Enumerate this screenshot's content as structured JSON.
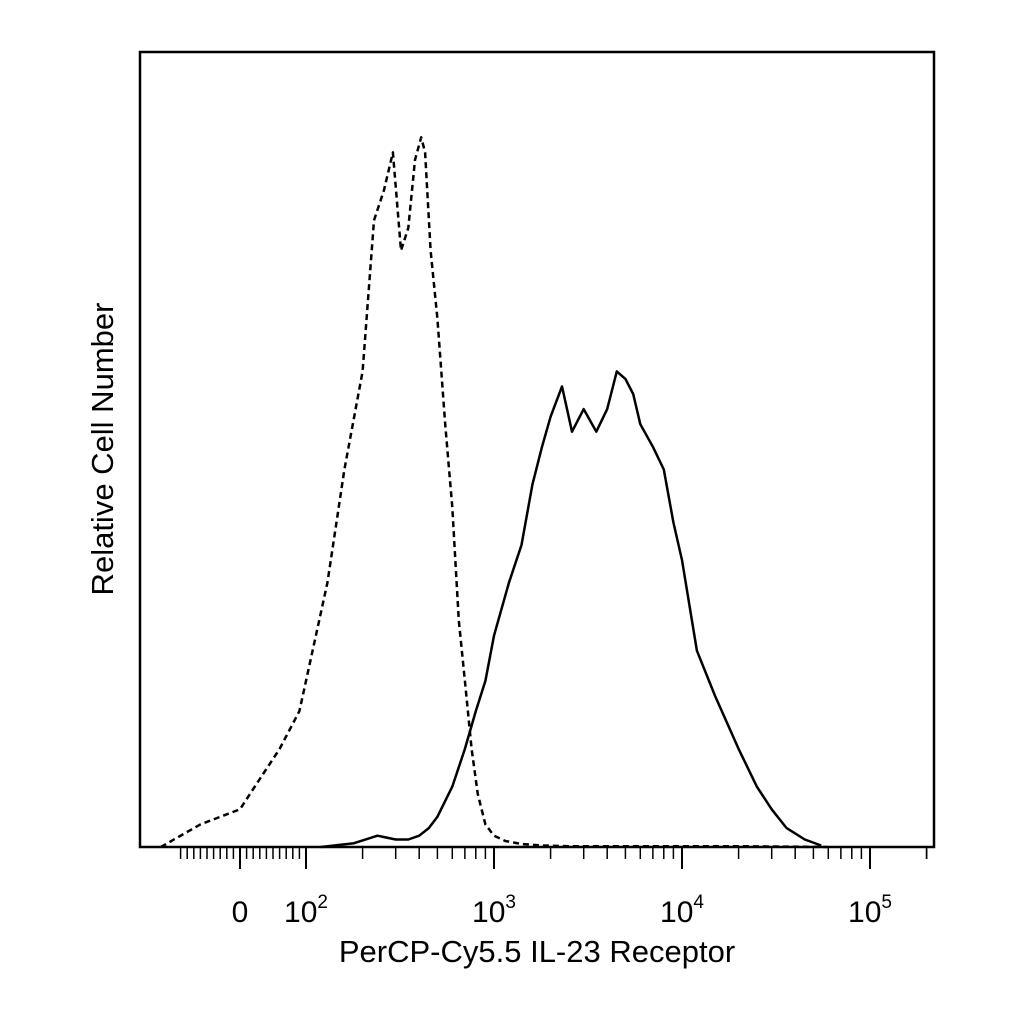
{
  "chart_data": {
    "type": "area",
    "title": "",
    "xlabel": "PerCP-Cy5.5 IL-23 Receptor",
    "ylabel": "Relative Cell Number",
    "x_scale": "biexponential",
    "xlim": [
      -250,
      250000
    ],
    "ylim": [
      0,
      100
    ],
    "grid": false,
    "legend": "none",
    "x_tick_labels": [
      {
        "value": 0,
        "base": "0",
        "exp": ""
      },
      {
        "value": 100,
        "base": "10",
        "exp": "2"
      },
      {
        "value": 1000,
        "base": "10",
        "exp": "3"
      },
      {
        "value": 10000,
        "base": "10",
        "exp": "4"
      },
      {
        "value": 100000,
        "base": "10",
        "exp": "5"
      }
    ],
    "series": [
      {
        "style": "dashed",
        "color": "#000000",
        "x": [
          -120,
          -60,
          0,
          30,
          60,
          90,
          100,
          130,
          160,
          200,
          230,
          260,
          290,
          320,
          350,
          380,
          410,
          430,
          460,
          500,
          550,
          600,
          650,
          700,
          760,
          820,
          900,
          1000,
          1150,
          1400,
          1800,
          2500,
          4000,
          8000,
          20000,
          60000
        ],
        "values": [
          0,
          3,
          5,
          9,
          13,
          18,
          22,
          35,
          50,
          63,
          83,
          87,
          92,
          79,
          82,
          91,
          94,
          92,
          79,
          70,
          56,
          45,
          30,
          22,
          13,
          7,
          3,
          1.5,
          0.8,
          0.4,
          0.2,
          0.1,
          0.1,
          0.1,
          0.1,
          0
        ]
      },
      {
        "style": "solid",
        "color": "#000000",
        "x": [
          120,
          180,
          240,
          300,
          350,
          400,
          450,
          500,
          600,
          700,
          800,
          900,
          1000,
          1200,
          1400,
          1600,
          1800,
          2000,
          2300,
          2600,
          3000,
          3500,
          4000,
          4500,
          5000,
          5500,
          6000,
          7000,
          8000,
          9000,
          10000,
          12000,
          15000,
          20000,
          25000,
          30000,
          36000,
          45000,
          55000
        ],
        "values": [
          0,
          0.5,
          1.5,
          1,
          1,
          1.5,
          2.5,
          4,
          8,
          13,
          18,
          22,
          28,
          35,
          40,
          48,
          53,
          57,
          61,
          55,
          58,
          55,
          58,
          63,
          62,
          60,
          56,
          53,
          50,
          43,
          38,
          26,
          20,
          13,
          8,
          5,
          2.5,
          1,
          0.2
        ]
      }
    ]
  }
}
